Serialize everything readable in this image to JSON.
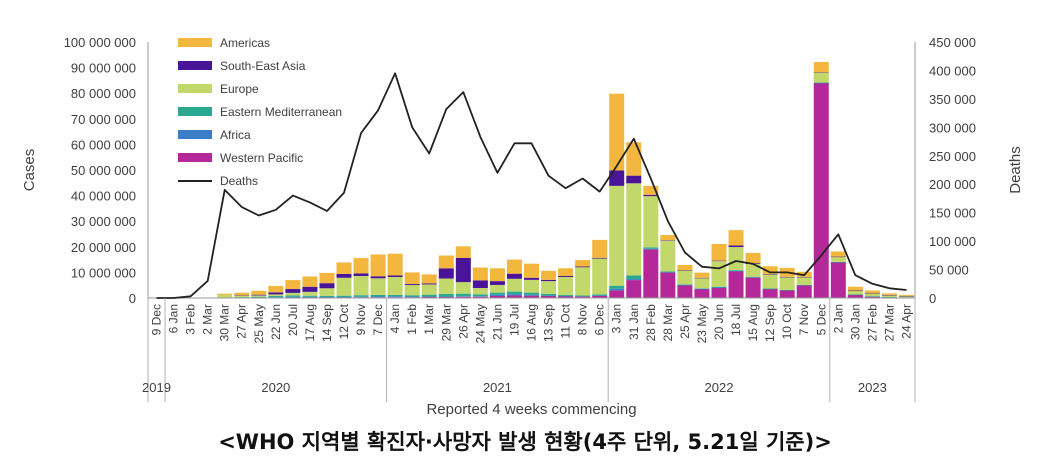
{
  "caption": "<WHO 지역별 확진자·사망자 발생 현황(4주 단위, 5.21일 기준)>",
  "chart_data": {
    "type": "bar",
    "stacked": true,
    "xlabel": "Reported 4 weeks commencing",
    "ylabel": "Cases",
    "y2label": "Deaths",
    "ylim": [
      0,
      100000000
    ],
    "y2lim": [
      0,
      450000
    ],
    "yticks": [
      "0",
      "10 000 000",
      "20 000 000",
      "30 000 000",
      "40 000 000",
      "50 000 000",
      "60 000 000",
      "70 000 000",
      "80 000 000",
      "90 000 000",
      "100 000 000"
    ],
    "y2ticks": [
      "0",
      "50 000",
      "100 000",
      "150 000",
      "200 000",
      "250 000",
      "300 000",
      "350 000",
      "400 000",
      "450 000"
    ],
    "legend_position": "top-left",
    "categories": [
      "9 Dec",
      "6 Jan",
      "3 Feb",
      "2 Mar",
      "30 Mar",
      "27 Apr",
      "25 May",
      "22 Jun",
      "20 Jul",
      "17 Aug",
      "14 Sep",
      "12 Oct",
      "9 Nov",
      "7 Dec",
      "4 Jan",
      "1 Feb",
      "1 Mar",
      "29 Mar",
      "26 Apr",
      "24 May",
      "21 Jun",
      "19 Jul",
      "16 Aug",
      "13 Sep",
      "11 Oct",
      "8 Nov",
      "6 Dec",
      "3 Jan",
      "31 Jan",
      "28 Feb",
      "28 Mar",
      "25 Apr",
      "23 May",
      "20 Jun",
      "18 Jul",
      "15 Aug",
      "12 Sep",
      "10 Oct",
      "7 Nov",
      "5 Dec",
      "2 Jan",
      "30 Jan",
      "27 Feb",
      "27 Mar",
      "24 Apr"
    ],
    "years": [
      {
        "label": "2019",
        "start": 0,
        "end": 1
      },
      {
        "label": "2020",
        "start": 1,
        "end": 14
      },
      {
        "label": "2021",
        "start": 14,
        "end": 27
      },
      {
        "label": "2022",
        "start": 27,
        "end": 40
      },
      {
        "label": "2023",
        "start": 40,
        "end": 45
      }
    ],
    "colors": {
      "Western Pacific": "#b5289a",
      "Africa": "#3a7dc9",
      "Eastern Mediterranean": "#2aa890",
      "Europe": "#c3d86a",
      "South-East Asia": "#4a1499",
      "Americas": "#f2b73c",
      "Deaths": "#222222"
    },
    "legend": [
      "Americas",
      "South-East Asia",
      "Europe",
      "Eastern Mediterranean",
      "Africa",
      "Western Pacific",
      "Deaths"
    ],
    "series": [
      {
        "name": "Western Pacific",
        "values": [
          0,
          0,
          0,
          0,
          100000,
          100000,
          100000,
          100000,
          200000,
          200000,
          200000,
          200000,
          300000,
          300000,
          300000,
          300000,
          400000,
          400000,
          500000,
          500000,
          800000,
          1000000,
          900000,
          800000,
          700000,
          600000,
          800000,
          3000000,
          7000000,
          19000000,
          10000000,
          5000000,
          3500000,
          4000000,
          10500000,
          8000000,
          3500000,
          3000000,
          5000000,
          84000000,
          14000000,
          1300000,
          600000,
          300000,
          200000
        ]
      },
      {
        "name": "Africa",
        "values": [
          0,
          0,
          0,
          0,
          0,
          50000,
          100000,
          200000,
          300000,
          300000,
          200000,
          200000,
          200000,
          300000,
          400000,
          300000,
          200000,
          200000,
          200000,
          200000,
          500000,
          500000,
          300000,
          200000,
          100000,
          100000,
          200000,
          600000,
          400000,
          200000,
          100000,
          100000,
          100000,
          100000,
          100000,
          100000,
          100000,
          50000,
          50000,
          50000,
          20000,
          20000,
          20000,
          10000,
          10000
        ]
      },
      {
        "name": "Eastern Mediterranean",
        "values": [
          0,
          0,
          0,
          0,
          100000,
          200000,
          300000,
          500000,
          500000,
          400000,
          400000,
          500000,
          600000,
          600000,
          500000,
          500000,
          700000,
          1000000,
          1000000,
          700000,
          800000,
          1000000,
          900000,
          600000,
          400000,
          300000,
          400000,
          1200000,
          1400000,
          600000,
          300000,
          200000,
          200000,
          300000,
          300000,
          200000,
          100000,
          100000,
          100000,
          100000,
          100000,
          50000,
          50000,
          50000,
          50000
        ]
      },
      {
        "name": "Europe",
        "values": [
          0,
          0,
          0,
          0,
          1000000,
          600000,
          500000,
          600000,
          1000000,
          1500000,
          3000000,
          7000000,
          7500000,
          6500000,
          7000000,
          4000000,
          4000000,
          6000000,
          4500000,
          2500000,
          3000000,
          5000000,
          5000000,
          5000000,
          7000000,
          11000000,
          14000000,
          39000000,
          36000000,
          20000000,
          12000000,
          5500000,
          4000000,
          10000000,
          9000000,
          5000000,
          5500000,
          5000000,
          3000000,
          4000000,
          2000000,
          1500000,
          1200000,
          800000,
          500000
        ]
      },
      {
        "name": "South-East Asia",
        "values": [
          0,
          0,
          0,
          0,
          0,
          100000,
          300000,
          800000,
          1500000,
          2000000,
          2000000,
          1500000,
          1000000,
          800000,
          600000,
          400000,
          400000,
          4000000,
          9500000,
          3000000,
          1500000,
          2000000,
          800000,
          500000,
          400000,
          300000,
          300000,
          6000000,
          3000000,
          500000,
          200000,
          100000,
          100000,
          200000,
          600000,
          300000,
          200000,
          100000,
          100000,
          50000,
          50000,
          50000,
          50000,
          50000,
          50000
        ]
      },
      {
        "name": "Americas",
        "values": [
          0,
          0,
          0,
          0,
          500000,
          1000000,
          1500000,
          2500000,
          3500000,
          4000000,
          4000000,
          4500000,
          6000000,
          8500000,
          8500000,
          4500000,
          3500000,
          5000000,
          4500000,
          5000000,
          5000000,
          5500000,
          5500000,
          3500000,
          3000000,
          2500000,
          7000000,
          30000000,
          13000000,
          3500000,
          2000000,
          2000000,
          2000000,
          6500000,
          6000000,
          4000000,
          3000000,
          3500000,
          2000000,
          4000000,
          2000000,
          1500000,
          1000000,
          600000,
          400000
        ]
      }
    ],
    "deaths": [
      0,
      0,
      3000,
      30000,
      190000,
      160000,
      145000,
      155000,
      180000,
      168000,
      153000,
      185000,
      290000,
      330000,
      395000,
      300000,
      254000,
      332000,
      362000,
      283000,
      220000,
      272000,
      272000,
      215000,
      193000,
      210000,
      187000,
      232000,
      280000,
      210000,
      135000,
      80000,
      55000,
      52000,
      65000,
      60000,
      45000,
      45000,
      40000,
      75000,
      112000,
      40000,
      25000,
      17000,
      14000
    ]
  }
}
